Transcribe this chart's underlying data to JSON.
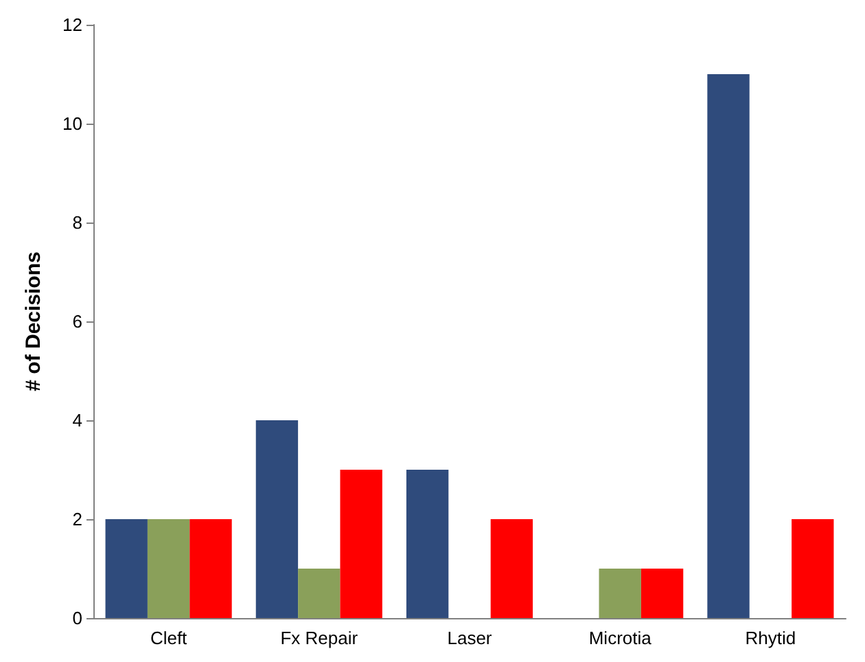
{
  "chart_data": {
    "type": "bar",
    "ylabel": "# of Decisions",
    "categories": [
      "Cleft",
      "Fx Repair",
      "Laser",
      "Microtia",
      "Rhytid"
    ],
    "series": [
      {
        "color": "#2f4b7c",
        "values": [
          2,
          4,
          3,
          0,
          11
        ]
      },
      {
        "color": "#8aa05a",
        "values": [
          2,
          1,
          0,
          1,
          0
        ]
      },
      {
        "color": "#ff0000",
        "values": [
          2,
          3,
          2,
          1,
          2
        ]
      }
    ],
    "ylim": [
      0,
      12
    ],
    "yticks": [
      0,
      2,
      4,
      6,
      8,
      10,
      12
    ],
    "grid": false
  }
}
